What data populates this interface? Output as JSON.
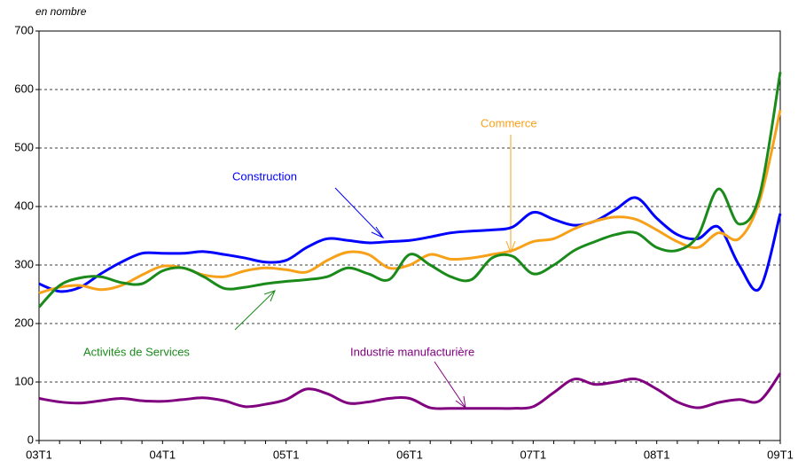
{
  "chart_data": {
    "type": "line",
    "unit_label": "en nombre",
    "categories": [
      "03T1",
      null,
      null,
      null,
      null,
      null,
      "04T1",
      null,
      null,
      null,
      null,
      null,
      "05T1",
      null,
      null,
      null,
      null,
      null,
      "06T1",
      null,
      null,
      null,
      null,
      null,
      "07T1",
      null,
      null,
      null,
      null,
      null,
      "08T1",
      null,
      null,
      null,
      null,
      null,
      "09T1"
    ],
    "series": [
      {
        "name": "Construction",
        "color": "#0000ff",
        "values": [
          268,
          255,
          262,
          285,
          305,
          320,
          320,
          320,
          323,
          318,
          312,
          305,
          308,
          330,
          345,
          342,
          338,
          340,
          342,
          348,
          355,
          358,
          360,
          365,
          390,
          378,
          368,
          375,
          395,
          415,
          380,
          352,
          345,
          365,
          300,
          260,
          388
        ]
      },
      {
        "name": "Commerce",
        "color": "#f7a11a",
        "values": [
          252,
          262,
          265,
          258,
          265,
          283,
          298,
          295,
          283,
          280,
          290,
          295,
          292,
          288,
          308,
          322,
          318,
          295,
          300,
          318,
          310,
          312,
          318,
          325,
          340,
          345,
          362,
          375,
          382,
          378,
          360,
          340,
          330,
          355,
          345,
          410,
          565
        ]
      },
      {
        "name": "Activités de Services",
        "color": "#1a8a1a",
        "values": [
          228,
          265,
          278,
          280,
          270,
          268,
          290,
          295,
          280,
          260,
          262,
          268,
          272,
          275,
          280,
          295,
          285,
          275,
          318,
          300,
          280,
          275,
          312,
          315,
          285,
          300,
          325,
          340,
          352,
          355,
          330,
          325,
          350,
          430,
          370,
          420,
          630
        ]
      },
      {
        "name": "Industrie manufacturière",
        "color": "#800080",
        "values": [
          72,
          66,
          64,
          68,
          72,
          68,
          67,
          70,
          73,
          68,
          58,
          62,
          70,
          88,
          80,
          64,
          66,
          72,
          72,
          56,
          55,
          55,
          55,
          55,
          58,
          82,
          105,
          96,
          100,
          105,
          88,
          66,
          56,
          65,
          70,
          68,
          115
        ]
      }
    ],
    "ylim": [
      0,
      700
    ],
    "yticks": [
      0,
      100,
      200,
      300,
      400,
      500,
      600,
      700
    ],
    "grid": true
  }
}
